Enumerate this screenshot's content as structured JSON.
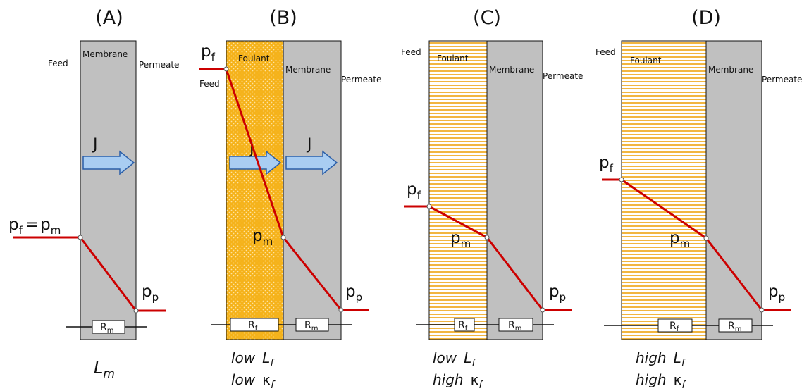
{
  "colors": {
    "membrane": "#c0c0c0",
    "foulant_dense": "#f5b21a",
    "foulant_light_lines": "#f2b640",
    "pressure_line": "#cc0000",
    "flux_arrow": "#a9cdf2",
    "flux_arrow_stroke": "#2a5ea8"
  },
  "panels": [
    {
      "id": "A",
      "title": "(A)",
      "feed_label": "Feed",
      "membrane_label": "Membrane",
      "permeate_label": "Permeate",
      "flux_label": "J",
      "pf": "p",
      "pf_sub": "f",
      "eq": "=",
      "pm": "p",
      "pm_sub": "m",
      "pp": "p",
      "pp_sub": "p",
      "rm": "R",
      "rm_sub": "m",
      "bottom_1": "L",
      "bottom_1_sub": "m"
    },
    {
      "id": "B",
      "title": "(B)",
      "feed_label": "Feed",
      "foulant_label": "Foulant",
      "membrane_label": "Membrane",
      "permeate_label": "Permeate",
      "flux_label": "J",
      "pf": "p",
      "pf_sub": "f",
      "pm": "p",
      "pm_sub": "m",
      "pp": "p",
      "pp_sub": "p",
      "rf": "R",
      "rf_sub": "f",
      "rm": "R",
      "rm_sub": "m",
      "bottom_1_word": "low",
      "bottom_1": "L",
      "bottom_1_sub": "f",
      "bottom_2_word": "low",
      "bottom_2": "κ",
      "bottom_2_sub": "f"
    },
    {
      "id": "C",
      "title": "(C)",
      "feed_label": "Feed",
      "foulant_label": "Foulant",
      "membrane_label": "Membrane",
      "permeate_label": "Permeate",
      "pf": "p",
      "pf_sub": "f",
      "pm": "p",
      "pm_sub": "m",
      "pp": "p",
      "pp_sub": "p",
      "rf": "R",
      "rf_sub": "f",
      "rm": "R",
      "rm_sub": "m",
      "bottom_1_word": "low",
      "bottom_1": "L",
      "bottom_1_sub": "f",
      "bottom_2_word": "high",
      "bottom_2": "κ",
      "bottom_2_sub": "f"
    },
    {
      "id": "D",
      "title": "(D)",
      "feed_label": "Feed",
      "foulant_label": "Foulant",
      "membrane_label": "Membrane",
      "permeate_label": "Permeate",
      "pf": "p",
      "pf_sub": "f",
      "pm": "p",
      "pm_sub": "m",
      "pp": "p",
      "pp_sub": "p",
      "rf": "R",
      "rf_sub": "f",
      "rm": "R",
      "rm_sub": "m",
      "bottom_1_word": "high",
      "bottom_1": "L",
      "bottom_1_sub": "f",
      "bottom_2_word": "high",
      "bottom_2": "κ",
      "bottom_2_sub": "f"
    }
  ]
}
